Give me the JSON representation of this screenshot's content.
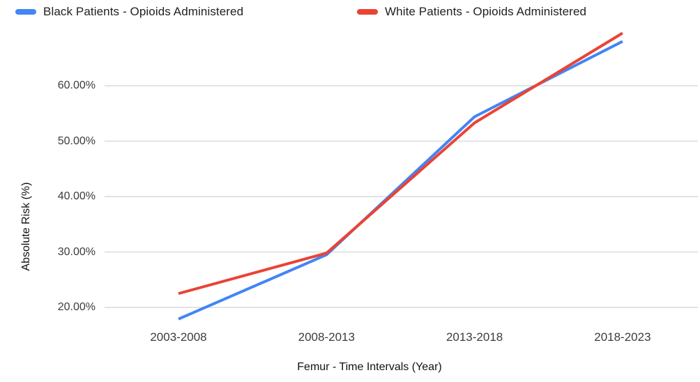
{
  "chart_data": {
    "type": "line",
    "title": "",
    "categories": [
      "2003-2008",
      "2008-2013",
      "2013-2018",
      "2018-2023"
    ],
    "series": [
      {
        "name": "Black Patients - Opioids Administered",
        "slug": "black-patients",
        "color": "#4285F4",
        "values": [
          17.9,
          29.5,
          54.4,
          68.0
        ]
      },
      {
        "name": "White Patients - Opioids Administered",
        "slug": "white-patients",
        "color": "#EA4335",
        "values": [
          22.5,
          29.8,
          53.3,
          69.5
        ]
      }
    ],
    "xlabel": "Femur - Time Intervals (Year)",
    "ylabel": "Absolute Risk (%)",
    "yticks": [
      20,
      30,
      40,
      50,
      60
    ],
    "ytick_labels": [
      "20.00%",
      "30.00%",
      "40.00%",
      "50.00%",
      "60.00%"
    ],
    "ylim": [
      15,
      70.5
    ],
    "grid": true,
    "legend_position": "top",
    "colors": {
      "gridline": "#e3e3e3",
      "series_blue": "#4285F4",
      "series_red": "#EA4335"
    }
  }
}
